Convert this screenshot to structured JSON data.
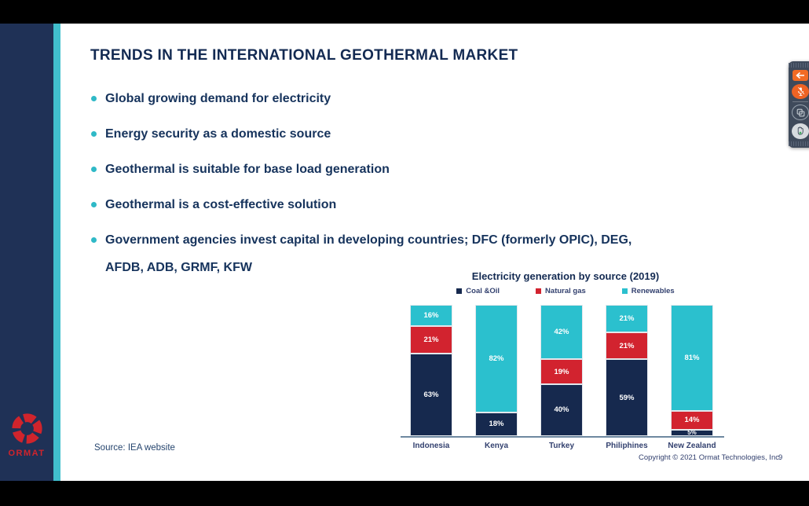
{
  "slide": {
    "title": "TRENDS IN THE INTERNATIONAL GEOTHERMAL MARKET",
    "bullets": [
      "Global growing demand for electricity",
      "Energy security as a domestic source",
      "Geothermal is suitable for base load generation",
      "Geothermal is a cost-effective solution",
      "Government agencies invest capital in developing countries; DFC (formerly OPIC), DEG,\nAFDB, ADB, GRMF, KFW"
    ],
    "source_note": "Source: IEA website",
    "footer": {
      "copyright": "Copyright © 2021 Ormat Technologies, Inc.",
      "page_number": "9"
    },
    "logo": {
      "text": "ORMAT",
      "color": "#D0242C"
    }
  },
  "toolbar": {
    "buttons": [
      {
        "icon": "back-arrow-icon",
        "color": "#F26B24"
      },
      {
        "icon": "microphone-muted-icon",
        "color": "#EE6324"
      },
      {
        "icon": "copy-pages-icon",
        "color": "transparent"
      },
      {
        "icon": "raise-hand-icon",
        "color": "#D7DBDF"
      }
    ]
  },
  "chart_data": {
    "type": "bar",
    "stacked": true,
    "title": "Electricity generation by source (2019)",
    "categories": [
      "Indonesia",
      "Kenya",
      "Turkey",
      "Philiphines",
      "New Zealand"
    ],
    "series": [
      {
        "name": "Coal &Oil",
        "color": "#16294E",
        "values": [
          63,
          18,
          40,
          59,
          5
        ]
      },
      {
        "name": "Natural gas",
        "color": "#D2232F",
        "values": [
          21,
          0,
          19,
          21,
          14
        ]
      },
      {
        "name": "Renewables",
        "color": "#2BC0CE",
        "values": [
          16,
          82,
          42,
          21,
          81
        ]
      }
    ],
    "value_suffix": "%",
    "ylim": [
      0,
      100
    ],
    "grid": false,
    "legend_position": "top",
    "xlabel": "",
    "ylabel": ""
  },
  "colors": {
    "sidebar_navy": "#1F3156",
    "teal_stripe": "#41BFCD",
    "title_navy": "#132A52",
    "bullet_dot": "#2FB9C7",
    "axis_line": "#6E88A0",
    "toolbar_bg": "#3F4A5B",
    "logo_red": "#D0242C"
  }
}
